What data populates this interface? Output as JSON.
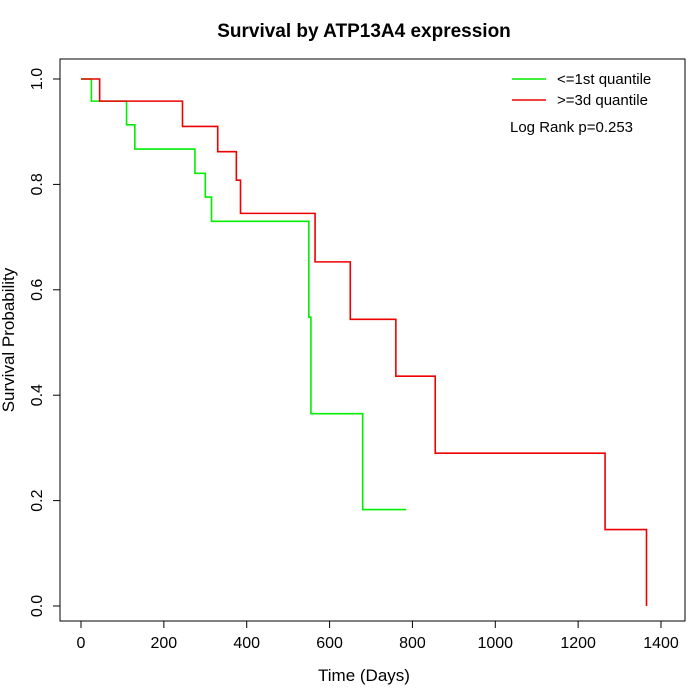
{
  "chart_data": {
    "type": "line",
    "title": "Survival by ATP13A4 expression",
    "xlabel": "Time (Days)",
    "ylabel": "Survival Probability",
    "xlim": [
      0,
      1400
    ],
    "ylim": [
      0,
      1
    ],
    "xticks": [
      0,
      200,
      400,
      600,
      800,
      1000,
      1200,
      1400
    ],
    "yticks": [
      0.0,
      0.2,
      0.4,
      0.6,
      0.8,
      1.0
    ],
    "xtick_labels": [
      "0",
      "200",
      "400",
      "600",
      "800",
      "1000",
      "1200",
      "1400"
    ],
    "ytick_labels": [
      "0.0",
      "0.2",
      "0.4",
      "0.6",
      "0.8",
      "1.0"
    ],
    "legend_position": "top-right",
    "annotation": "Log Rank p=0.253",
    "series": [
      {
        "name": "<=1st quantile",
        "color": "#00ee00",
        "step": true,
        "x": [
          0,
          25,
          110,
          130,
          275,
          300,
          315,
          550,
          555,
          680,
          785
        ],
        "y": [
          1.0,
          0.958,
          0.913,
          0.867,
          0.821,
          0.776,
          0.73,
          0.548,
          0.365,
          0.183,
          0.183
        ]
      },
      {
        "name": ">=3d quantile",
        "color": "#ee0000",
        "step": true,
        "x": [
          0,
          45,
          245,
          330,
          375,
          385,
          565,
          650,
          760,
          855,
          1265,
          1365
        ],
        "y": [
          1.0,
          0.958,
          0.91,
          0.862,
          0.808,
          0.745,
          0.653,
          0.544,
          0.436,
          0.29,
          0.145,
          0.0
        ]
      }
    ]
  }
}
